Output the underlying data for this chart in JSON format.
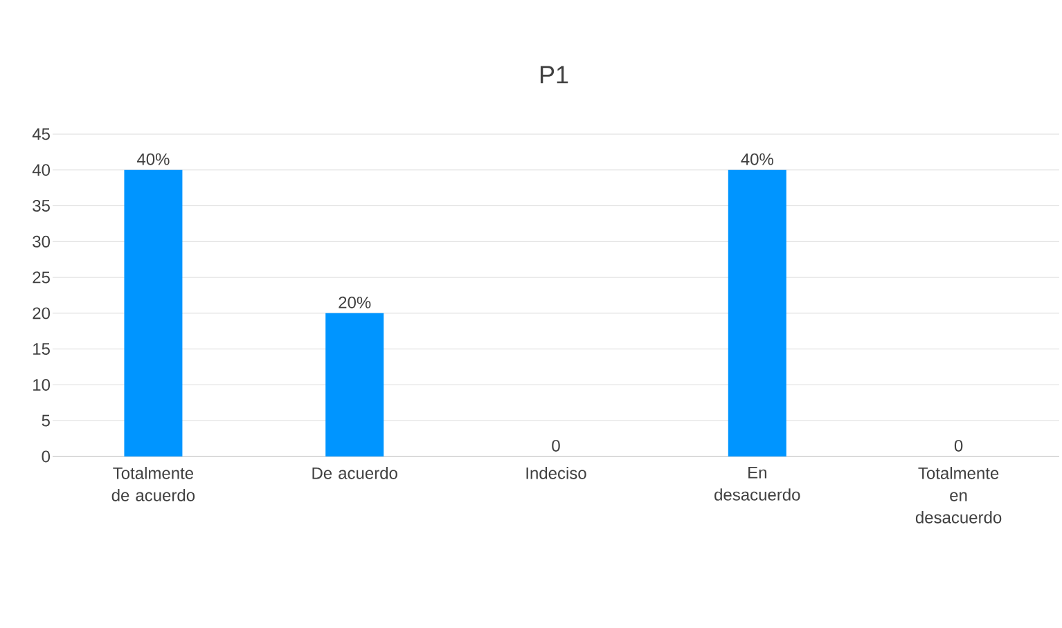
{
  "chart_data": {
    "type": "bar",
    "title": "P1",
    "categories": [
      "Totalmente de acuerdo",
      "De acuerdo",
      "Indeciso",
      "En desacuerdo",
      "Totalmente en desacuerdo"
    ],
    "values": [
      40,
      20,
      0,
      40,
      0
    ],
    "value_labels": [
      "40%",
      "20%",
      "0",
      "40%",
      "0"
    ],
    "color": "#0095ff",
    "ylim": [
      0,
      45
    ],
    "yticks": [
      0,
      5,
      10,
      15,
      20,
      25,
      30,
      35,
      40,
      45
    ],
    "grid": "y"
  }
}
